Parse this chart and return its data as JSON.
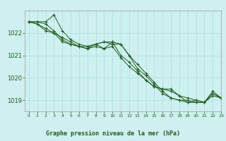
{
  "title": "Graphe pression niveau de la mer (hPa)",
  "background_color": "#cff0f0",
  "grid_color": "#aadddd",
  "line_color": "#1e5c1e",
  "marker_color": "#1e5c1e",
  "xlim": [
    -0.5,
    23
  ],
  "ylim": [
    1018.5,
    1023.0
  ],
  "yticks": [
    1019,
    1020,
    1021,
    1022
  ],
  "xticks": [
    0,
    1,
    2,
    3,
    4,
    5,
    6,
    7,
    8,
    9,
    10,
    11,
    12,
    13,
    14,
    15,
    16,
    17,
    18,
    19,
    20,
    21,
    22,
    23
  ],
  "series": [
    [
      1022.5,
      1022.5,
      1022.5,
      1022.8,
      1022.1,
      1021.7,
      1021.5,
      1021.4,
      1021.5,
      1021.6,
      1021.6,
      1021.5,
      1021.0,
      1020.6,
      1020.2,
      1019.8,
      1019.4,
      1019.1,
      1019.0,
      1018.9,
      1018.9,
      1018.9,
      1019.2,
      1019.1
    ],
    [
      1022.5,
      1022.5,
      1022.4,
      1022.1,
      1021.7,
      1021.5,
      1021.4,
      1021.3,
      1021.5,
      1021.3,
      1021.6,
      1021.0,
      1020.7,
      1020.3,
      1019.9,
      1019.6,
      1019.5,
      1019.5,
      1019.2,
      1018.9,
      1019.0,
      1018.9,
      1019.4,
      1019.1
    ],
    [
      1022.5,
      1022.4,
      1022.2,
      1022.0,
      1021.8,
      1021.6,
      1021.4,
      1021.4,
      1021.5,
      1021.6,
      1021.5,
      1021.5,
      1021.0,
      1020.4,
      1020.1,
      1019.7,
      1019.3,
      1019.1,
      1019.0,
      1019.0,
      1018.9,
      1018.9,
      1019.3,
      1019.1
    ],
    [
      1022.5,
      1022.4,
      1022.1,
      1022.0,
      1021.6,
      1021.5,
      1021.4,
      1021.3,
      1021.4,
      1021.3,
      1021.4,
      1020.9,
      1020.5,
      1020.2,
      1019.9,
      1019.6,
      1019.5,
      1019.4,
      1019.2,
      1019.1,
      1019.0,
      1018.9,
      1019.3,
      1019.1
    ]
  ]
}
